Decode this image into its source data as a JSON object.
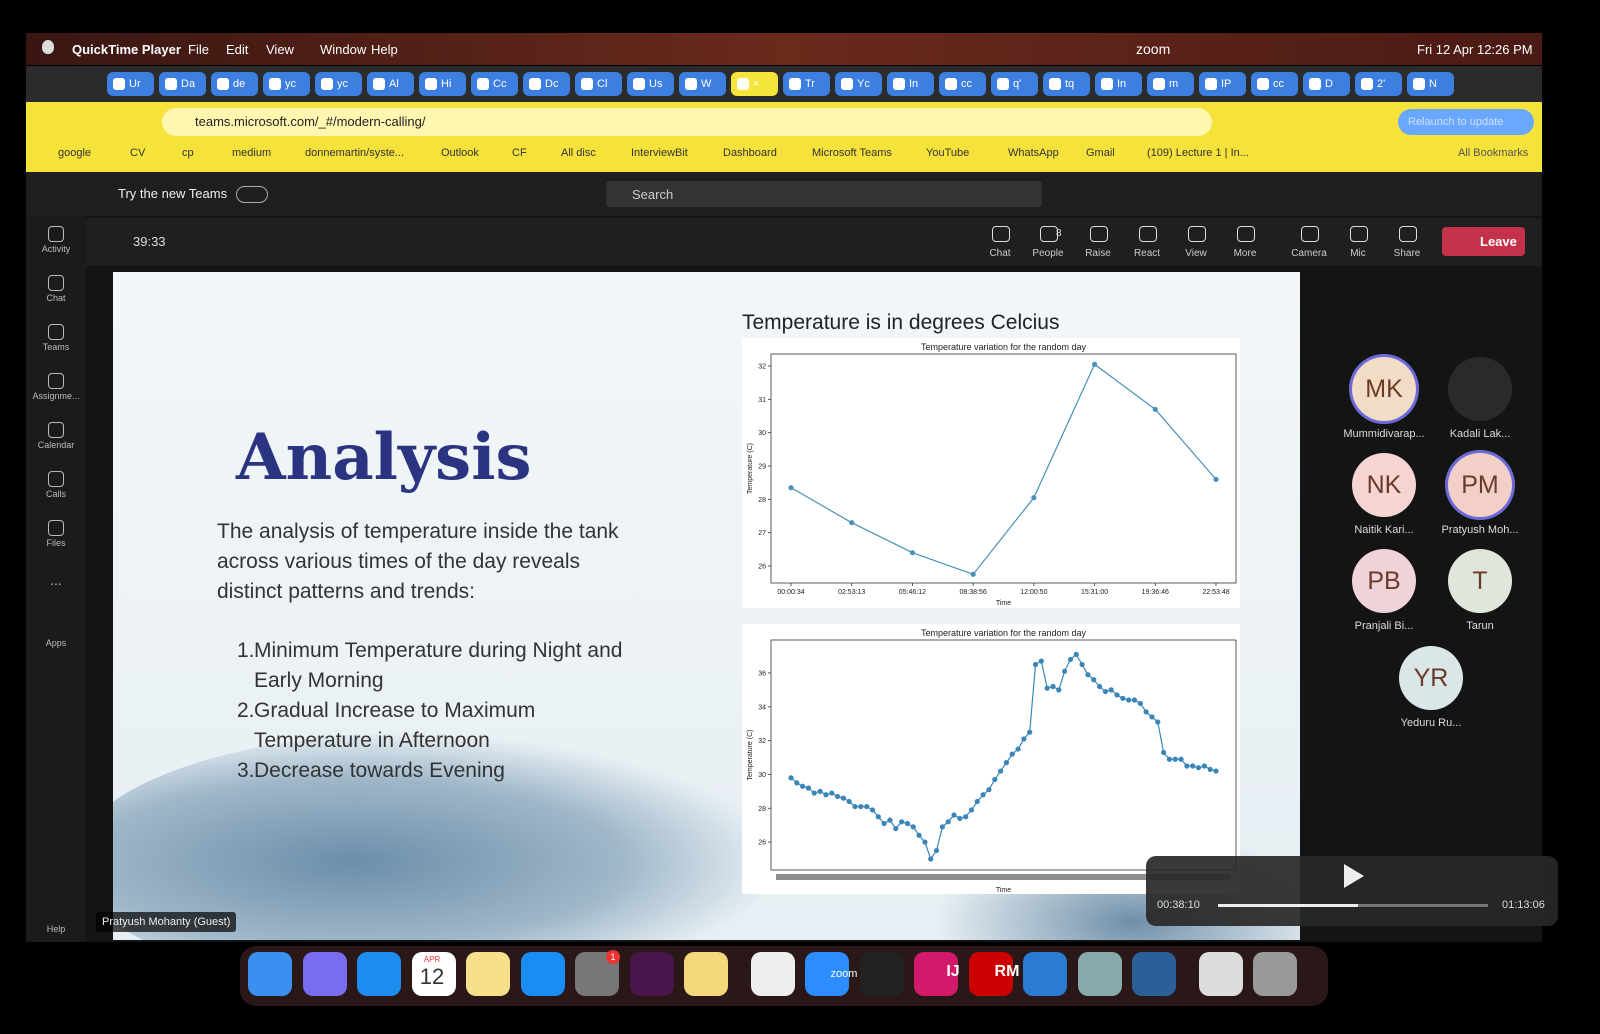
{
  "menubar": {
    "app": "QuickTime Player",
    "menus": [
      "File",
      "Edit",
      "View",
      "Window",
      "Help"
    ],
    "status": "zoom",
    "datetime": "Fri 12 Apr 12:26 PM"
  },
  "tabs": {
    "before": [
      "Ur",
      "Da",
      "de",
      "yc",
      "yc",
      "Al",
      "Hi",
      "Cc",
      "Dc",
      "Cl",
      "Us",
      "W"
    ],
    "after": [
      "Tr",
      "Yc",
      "In",
      "cc",
      "q'",
      "tq",
      "In",
      "m",
      "IP",
      "cc",
      "D",
      "2'",
      "N"
    ]
  },
  "address": {
    "url": "teams.microsoft.com/_#/modern-calling/",
    "relaunch": "Relaunch to update"
  },
  "bookmarks": {
    "items": [
      "google",
      "CV",
      "cp",
      "medium",
      "donnemartin/syste...",
      "Outlook",
      "CF",
      "All disc",
      "InterviewBit",
      "Dashboard",
      "Microsoft Teams",
      "YouTube",
      "WhatsApp",
      "Gmail",
      "(109) Lecture 1 | In..."
    ],
    "all": "All Bookmarks"
  },
  "teams": {
    "try_new": "Try the new Teams",
    "search": "Search"
  },
  "rail": {
    "items": [
      "Activity",
      "Chat",
      "Teams",
      "Assignme...",
      "Calendar",
      "Calls",
      "Files"
    ],
    "more": "...",
    "apps": "Apps",
    "help": "Help"
  },
  "meeting": {
    "timer": "39:33",
    "controls": [
      "Chat",
      "People",
      "Raise",
      "React",
      "View",
      "More",
      "Camera",
      "Mic",
      "Share"
    ],
    "people_count": "8",
    "leave": "Leave",
    "presenter": "Pratyush Mohanty (Guest)"
  },
  "slide": {
    "title": "Analysis",
    "paragraph": [
      "The analysis of temperature inside the tank",
      "across various times of the day reveals",
      "distinct patterns and trends:"
    ],
    "list": [
      {
        "number": "1.",
        "lines": [
          "Minimum Temperature during Night and",
          "Early Morning"
        ]
      },
      {
        "number": "2.",
        "lines": [
          "Gradual Increase to Maximum",
          "Temperature in Afternoon"
        ]
      },
      {
        "number": "3.",
        "lines": [
          "Decrease towards Evening"
        ]
      }
    ],
    "charts_heading": "Temperature is in degrees Celcius"
  },
  "chart_data": [
    {
      "type": "line",
      "title": "Temperature variation for the random day",
      "x_label": "Time",
      "y_label": "Temperature (C)",
      "color": "#4a90b8",
      "categories": [
        "00:00:34",
        "02:53:13",
        "05:46:12",
        "08:38:56",
        "12:00:50",
        "15:31:00",
        "19:36:46",
        "22:53:48"
      ],
      "values": [
        28.35,
        27.3,
        26.4,
        25.75,
        28.05,
        32.05,
        30.7,
        28.6
      ],
      "ylim": [
        25.49,
        32.36
      ],
      "yticks": [
        26,
        27,
        28,
        29,
        30,
        31,
        32
      ]
    },
    {
      "type": "line",
      "title": "Temperature variation for the random day",
      "x_label": "Time",
      "y_label": "Temperature (C)",
      "color": "#3a86b8",
      "values": [
        29.8,
        29.5,
        29.3,
        29.2,
        28.9,
        29.0,
        28.8,
        28.9,
        28.7,
        28.6,
        28.4,
        28.1,
        28.1,
        28.1,
        27.9,
        27.5,
        27.1,
        27.3,
        26.8,
        27.2,
        27.1,
        26.9,
        26.4,
        26.0,
        25.0,
        25.5,
        26.9,
        27.2,
        27.6,
        27.4,
        27.5,
        27.9,
        28.4,
        28.8,
        29.1,
        29.7,
        30.2,
        30.7,
        31.2,
        31.5,
        32.1,
        32.5,
        36.5,
        36.7,
        35.1,
        35.2,
        35.0,
        36.1,
        36.8,
        37.1,
        36.5,
        35.9,
        35.6,
        35.2,
        34.9,
        35.0,
        34.7,
        34.5,
        34.4,
        34.4,
        34.2,
        33.7,
        33.4,
        33.1,
        31.3,
        30.9,
        30.9,
        30.9,
        30.5,
        30.5,
        30.4,
        30.5,
        30.3,
        30.2
      ],
      "ylim": [
        24.35,
        37.95
      ],
      "yticks": [
        26,
        28,
        30,
        32,
        34,
        36
      ]
    }
  ],
  "participants": [
    {
      "initials": "MK",
      "name": "Mummidivarap...",
      "color": "#f3dcc6",
      "ring": true
    },
    {
      "initials": "",
      "name": "Kadali Lak...",
      "color": "#2a2a2a",
      "ring": false
    },
    {
      "initials": "NK",
      "name": "Naitik Kari...",
      "color": "#f6d4d2",
      "ring": false
    },
    {
      "initials": "PM",
      "name": "Pratyush Moh...",
      "color": "#f2d0c8",
      "ring": true
    },
    {
      "initials": "PB",
      "name": "Pranjali Bi...",
      "color": "#f1d3da",
      "ring": false
    },
    {
      "initials": "T",
      "name": "Tarun",
      "color": "#dfe7dd",
      "ring": false
    },
    {
      "initials": "YR",
      "name": "Yeduru Ru...",
      "color": "#dbe6e9",
      "ring": false
    }
  ],
  "player": {
    "current": "00:38:10",
    "total": "01:13:06"
  },
  "dock": {
    "month": "APR",
    "day": "12",
    "badge": "1",
    "zoom": "zoom",
    "ij": "IJ",
    "rm": "RM"
  }
}
